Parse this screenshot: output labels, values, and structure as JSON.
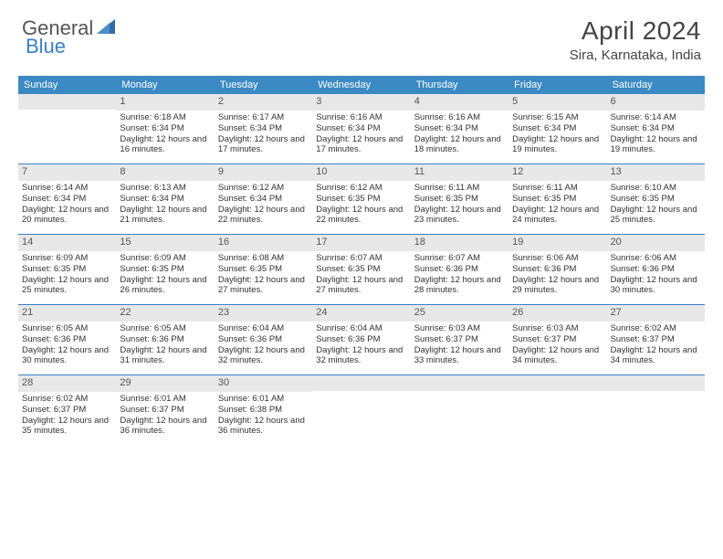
{
  "logo": {
    "text1": "General",
    "text2": "Blue"
  },
  "title": "April 2024",
  "location": "Sira, Karnataka, India",
  "colors": {
    "header_bg": "#3b8ac4",
    "accent": "#3b7fc4",
    "daynum_bg": "#e8e8e8",
    "text": "#333333"
  },
  "weekdays": [
    "Sunday",
    "Monday",
    "Tuesday",
    "Wednesday",
    "Thursday",
    "Friday",
    "Saturday"
  ],
  "weeks": [
    [
      {
        "n": "",
        "sr": "",
        "ss": "",
        "dl": ""
      },
      {
        "n": "1",
        "sr": "Sunrise: 6:18 AM",
        "ss": "Sunset: 6:34 PM",
        "dl": "Daylight: 12 hours and 16 minutes."
      },
      {
        "n": "2",
        "sr": "Sunrise: 6:17 AM",
        "ss": "Sunset: 6:34 PM",
        "dl": "Daylight: 12 hours and 17 minutes."
      },
      {
        "n": "3",
        "sr": "Sunrise: 6:16 AM",
        "ss": "Sunset: 6:34 PM",
        "dl": "Daylight: 12 hours and 17 minutes."
      },
      {
        "n": "4",
        "sr": "Sunrise: 6:16 AM",
        "ss": "Sunset: 6:34 PM",
        "dl": "Daylight: 12 hours and 18 minutes."
      },
      {
        "n": "5",
        "sr": "Sunrise: 6:15 AM",
        "ss": "Sunset: 6:34 PM",
        "dl": "Daylight: 12 hours and 19 minutes."
      },
      {
        "n": "6",
        "sr": "Sunrise: 6:14 AM",
        "ss": "Sunset: 6:34 PM",
        "dl": "Daylight: 12 hours and 19 minutes."
      }
    ],
    [
      {
        "n": "7",
        "sr": "Sunrise: 6:14 AM",
        "ss": "Sunset: 6:34 PM",
        "dl": "Daylight: 12 hours and 20 minutes."
      },
      {
        "n": "8",
        "sr": "Sunrise: 6:13 AM",
        "ss": "Sunset: 6:34 PM",
        "dl": "Daylight: 12 hours and 21 minutes."
      },
      {
        "n": "9",
        "sr": "Sunrise: 6:12 AM",
        "ss": "Sunset: 6:34 PM",
        "dl": "Daylight: 12 hours and 22 minutes."
      },
      {
        "n": "10",
        "sr": "Sunrise: 6:12 AM",
        "ss": "Sunset: 6:35 PM",
        "dl": "Daylight: 12 hours and 22 minutes."
      },
      {
        "n": "11",
        "sr": "Sunrise: 6:11 AM",
        "ss": "Sunset: 6:35 PM",
        "dl": "Daylight: 12 hours and 23 minutes."
      },
      {
        "n": "12",
        "sr": "Sunrise: 6:11 AM",
        "ss": "Sunset: 6:35 PM",
        "dl": "Daylight: 12 hours and 24 minutes."
      },
      {
        "n": "13",
        "sr": "Sunrise: 6:10 AM",
        "ss": "Sunset: 6:35 PM",
        "dl": "Daylight: 12 hours and 25 minutes."
      }
    ],
    [
      {
        "n": "14",
        "sr": "Sunrise: 6:09 AM",
        "ss": "Sunset: 6:35 PM",
        "dl": "Daylight: 12 hours and 25 minutes."
      },
      {
        "n": "15",
        "sr": "Sunrise: 6:09 AM",
        "ss": "Sunset: 6:35 PM",
        "dl": "Daylight: 12 hours and 26 minutes."
      },
      {
        "n": "16",
        "sr": "Sunrise: 6:08 AM",
        "ss": "Sunset: 6:35 PM",
        "dl": "Daylight: 12 hours and 27 minutes."
      },
      {
        "n": "17",
        "sr": "Sunrise: 6:07 AM",
        "ss": "Sunset: 6:35 PM",
        "dl": "Daylight: 12 hours and 27 minutes."
      },
      {
        "n": "18",
        "sr": "Sunrise: 6:07 AM",
        "ss": "Sunset: 6:36 PM",
        "dl": "Daylight: 12 hours and 28 minutes."
      },
      {
        "n": "19",
        "sr": "Sunrise: 6:06 AM",
        "ss": "Sunset: 6:36 PM",
        "dl": "Daylight: 12 hours and 29 minutes."
      },
      {
        "n": "20",
        "sr": "Sunrise: 6:06 AM",
        "ss": "Sunset: 6:36 PM",
        "dl": "Daylight: 12 hours and 30 minutes."
      }
    ],
    [
      {
        "n": "21",
        "sr": "Sunrise: 6:05 AM",
        "ss": "Sunset: 6:36 PM",
        "dl": "Daylight: 12 hours and 30 minutes."
      },
      {
        "n": "22",
        "sr": "Sunrise: 6:05 AM",
        "ss": "Sunset: 6:36 PM",
        "dl": "Daylight: 12 hours and 31 minutes."
      },
      {
        "n": "23",
        "sr": "Sunrise: 6:04 AM",
        "ss": "Sunset: 6:36 PM",
        "dl": "Daylight: 12 hours and 32 minutes."
      },
      {
        "n": "24",
        "sr": "Sunrise: 6:04 AM",
        "ss": "Sunset: 6:36 PM",
        "dl": "Daylight: 12 hours and 32 minutes."
      },
      {
        "n": "25",
        "sr": "Sunrise: 6:03 AM",
        "ss": "Sunset: 6:37 PM",
        "dl": "Daylight: 12 hours and 33 minutes."
      },
      {
        "n": "26",
        "sr": "Sunrise: 6:03 AM",
        "ss": "Sunset: 6:37 PM",
        "dl": "Daylight: 12 hours and 34 minutes."
      },
      {
        "n": "27",
        "sr": "Sunrise: 6:02 AM",
        "ss": "Sunset: 6:37 PM",
        "dl": "Daylight: 12 hours and 34 minutes."
      }
    ],
    [
      {
        "n": "28",
        "sr": "Sunrise: 6:02 AM",
        "ss": "Sunset: 6:37 PM",
        "dl": "Daylight: 12 hours and 35 minutes."
      },
      {
        "n": "29",
        "sr": "Sunrise: 6:01 AM",
        "ss": "Sunset: 6:37 PM",
        "dl": "Daylight: 12 hours and 36 minutes."
      },
      {
        "n": "30",
        "sr": "Sunrise: 6:01 AM",
        "ss": "Sunset: 6:38 PM",
        "dl": "Daylight: 12 hours and 36 minutes."
      },
      {
        "n": "",
        "sr": "",
        "ss": "",
        "dl": ""
      },
      {
        "n": "",
        "sr": "",
        "ss": "",
        "dl": ""
      },
      {
        "n": "",
        "sr": "",
        "ss": "",
        "dl": ""
      },
      {
        "n": "",
        "sr": "",
        "ss": "",
        "dl": ""
      }
    ]
  ]
}
